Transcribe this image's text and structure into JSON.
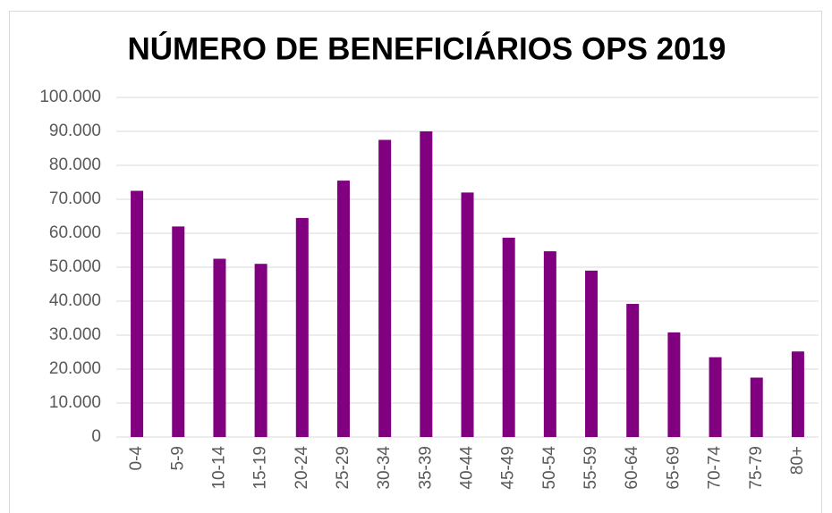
{
  "chart_data": {
    "type": "bar",
    "title": "NÚMERO DE BENEFICIÁRIOS OPS 2019",
    "categories": [
      "0-4",
      "5-9",
      "10-14",
      "15-19",
      "20-24",
      "25-29",
      "30-34",
      "35-39",
      "40-44",
      "45-49",
      "50-54",
      "55-59",
      "60-64",
      "65-69",
      "70-74",
      "75-79",
      "80+"
    ],
    "values": [
      72500,
      62000,
      52500,
      51000,
      64500,
      75500,
      87500,
      90000,
      72000,
      58700,
      54700,
      49000,
      39200,
      30800,
      23500,
      17500,
      25200
    ],
    "color": "#800080",
    "ylim": [
      0,
      100000
    ],
    "yticks": [
      0,
      {
        "value": 10000,
        "label": "10.000"
      },
      {
        "value": 20000,
        "label": "20.000"
      },
      {
        "value": 30000,
        "label": "30.000"
      },
      {
        "value": 40000,
        "label": "40.000"
      },
      {
        "value": 50000,
        "label": "50.000"
      },
      {
        "value": 60000,
        "label": "60.000"
      },
      {
        "value": 70000,
        "label": "70.000"
      },
      {
        "value": 80000,
        "label": "80.000"
      },
      {
        "value": 90000,
        "label": "90.000"
      },
      {
        "value": 100000,
        "label": "100.000"
      }
    ],
    "grid": true
  }
}
